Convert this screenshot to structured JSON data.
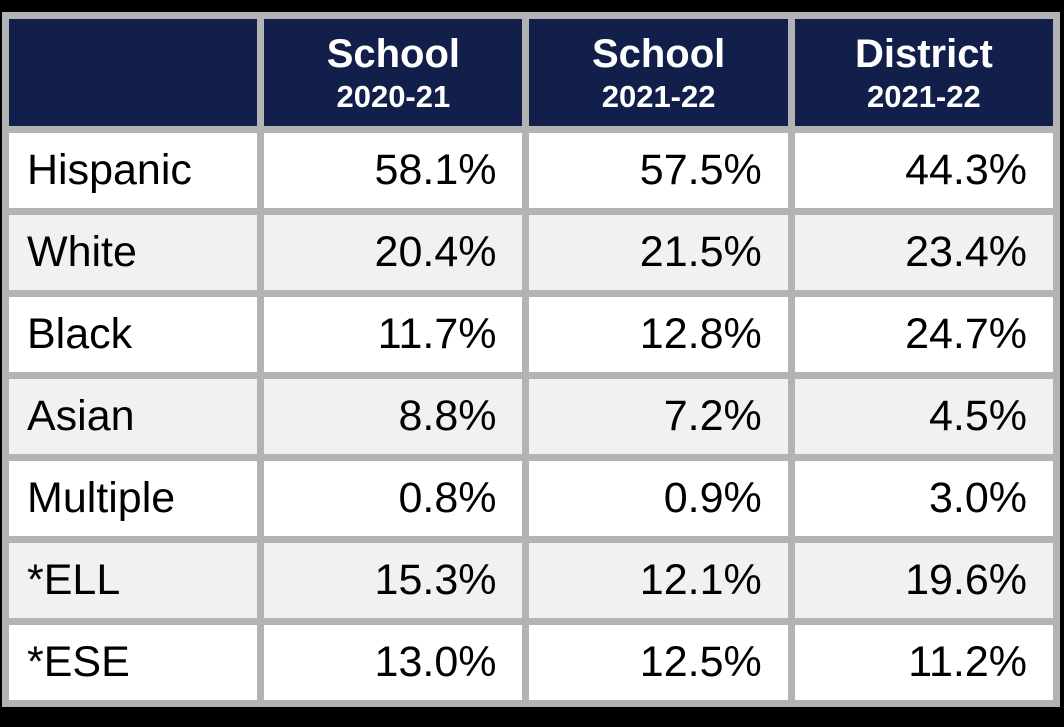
{
  "chart_data": {
    "type": "table",
    "columns": [
      {
        "line1": "School",
        "line2": "2020-21"
      },
      {
        "line1": "School",
        "line2": "2021-22"
      },
      {
        "line1": "District",
        "line2": "2021-22"
      }
    ],
    "rows": [
      {
        "label": "Hispanic",
        "values": [
          "58.1%",
          "57.5%",
          "44.3%"
        ]
      },
      {
        "label": "White",
        "values": [
          "20.4%",
          "21.5%",
          "23.4%"
        ]
      },
      {
        "label": "Black",
        "values": [
          "11.7%",
          "12.8%",
          "24.7%"
        ]
      },
      {
        "label": "Asian",
        "values": [
          "8.8%",
          "7.2%",
          "4.5%"
        ]
      },
      {
        "label": "Multiple",
        "values": [
          "0.8%",
          "0.9%",
          "3.0%"
        ]
      },
      {
        "label": "*ELL",
        "values": [
          "15.3%",
          "12.1%",
          "19.6%"
        ]
      },
      {
        "label": "*ESE",
        "values": [
          "13.0%",
          "12.5%",
          "11.2%"
        ]
      }
    ],
    "colors": {
      "header_bg": "#121f4a",
      "header_text": "#ffffff",
      "grid": "#b3b3b3",
      "row_bg": "#ffffff",
      "row_alt_bg": "#f1f1f1",
      "frame": "#000000",
      "text": "#000000"
    }
  }
}
